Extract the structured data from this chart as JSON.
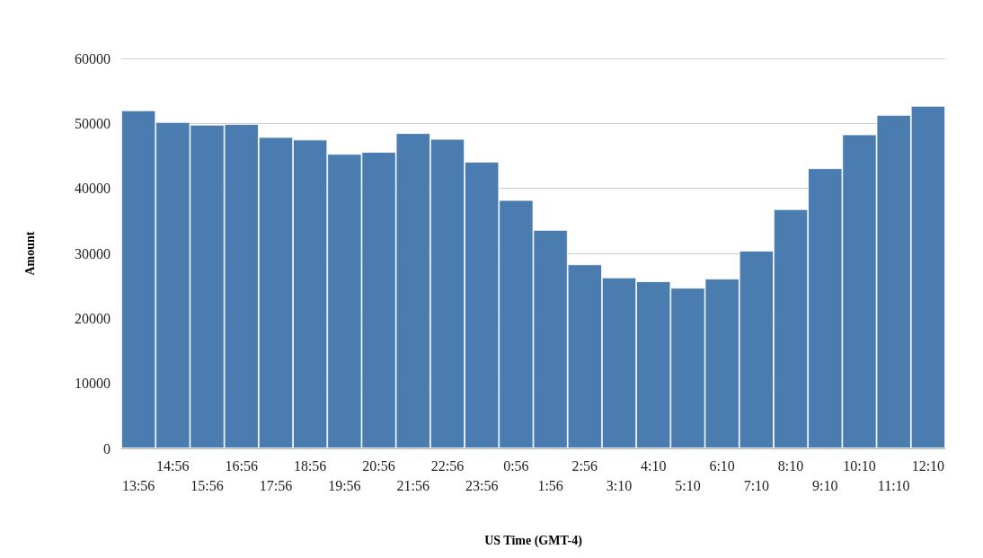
{
  "chart_data": {
    "type": "bar",
    "xlabel": "US Time (GMT-4)",
    "ylabel": "Amount",
    "categories": [
      "13:56",
      "14:56",
      "15:56",
      "16:56",
      "17:56",
      "18:56",
      "19:56",
      "20:56",
      "21:56",
      "22:56",
      "23:56",
      "0:56",
      "1:56",
      "2:56",
      "3:10",
      "4:10",
      "5:10",
      "6:10",
      "7:10",
      "8:10",
      "9:10",
      "10:10",
      "11:10",
      "12:10"
    ],
    "values": [
      52000,
      50200,
      49800,
      49900,
      47900,
      47500,
      45300,
      45600,
      48500,
      47600,
      44100,
      38200,
      33600,
      28300,
      26300,
      25700,
      24700,
      26100,
      30400,
      36800,
      43100,
      48300,
      51300,
      52700
    ],
    "color": "#4a7cb0",
    "ylim": [
      0,
      60000
    ],
    "yticks": [
      0,
      10000,
      20000,
      30000,
      40000,
      50000,
      60000
    ],
    "grid": "y"
  }
}
